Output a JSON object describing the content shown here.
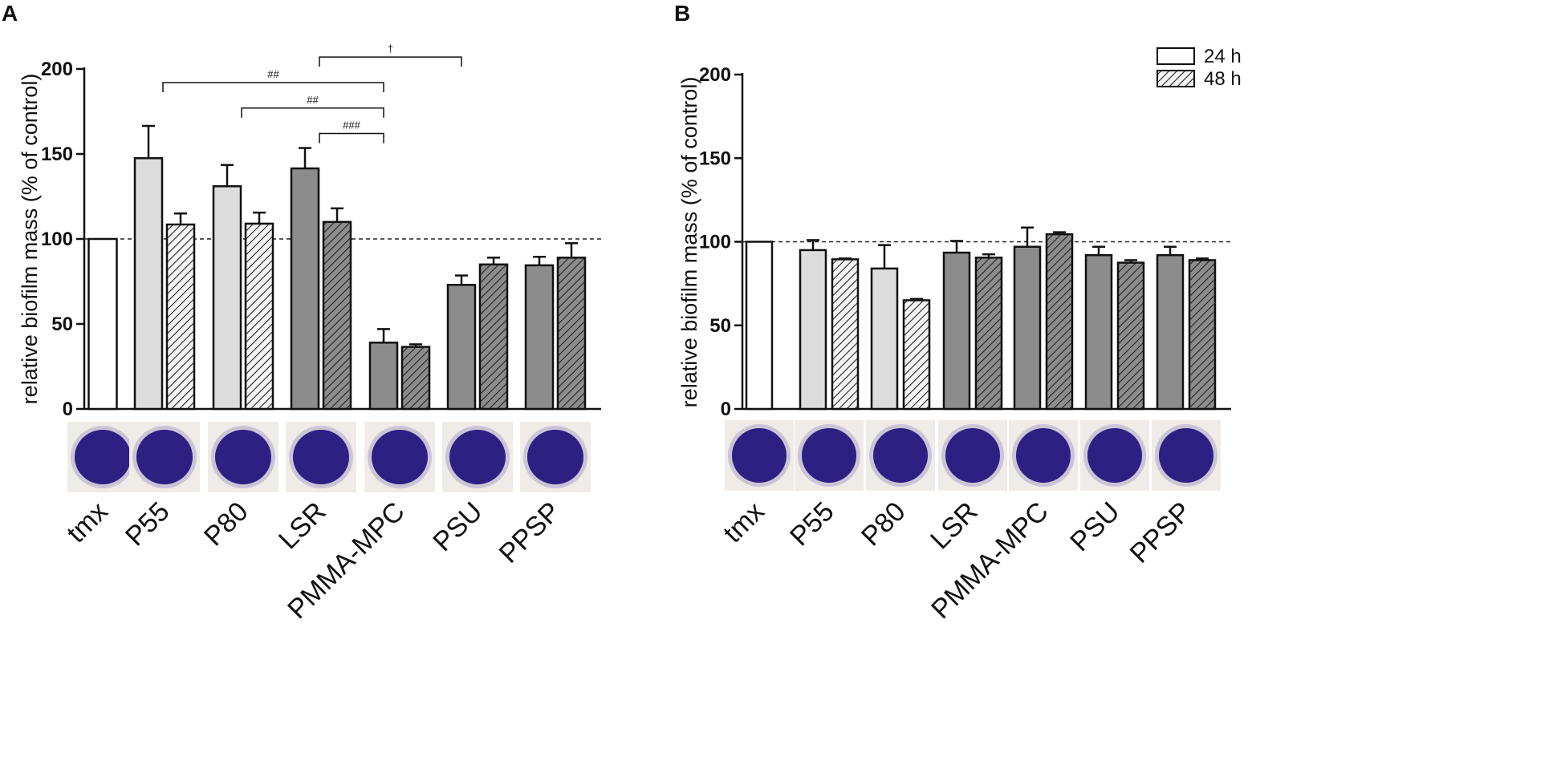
{
  "colors": {
    "white": "#ffffff",
    "light": "#dcdcdc",
    "dark": "#8c8c8c",
    "stroke": "#111111",
    "dish_bg": "#efece8",
    "dish": "#2e1f82"
  },
  "legend": {
    "items": [
      {
        "label": "24 h",
        "pattern": "open"
      },
      {
        "label": "48 h",
        "pattern": "hatched"
      }
    ]
  },
  "chart_data": [
    {
      "panel": "A",
      "type": "bar",
      "ylabel": "relative biofilm mass (% of control)",
      "ylim": [
        0,
        200
      ],
      "yticks": [
        0,
        50,
        100,
        150,
        200
      ],
      "reference_line": 100,
      "categories": [
        "tmx",
        "P55",
        "P80",
        "LSR",
        "PMMA-MPC",
        "PSU",
        "PPSP"
      ],
      "series": [
        {
          "name": "24 h",
          "values": [
            100,
            147.5,
            131,
            141.5,
            39,
            73,
            84.5
          ],
          "errors": [
            0,
            19,
            12.5,
            12,
            8,
            5.5,
            5
          ]
        },
        {
          "name": "48 h",
          "values": [
            null,
            108.5,
            109,
            110,
            36.5,
            85,
            89
          ],
          "errors": [
            0,
            6.5,
            6.5,
            8,
            1.5,
            4,
            8.5
          ]
        }
      ],
      "category_shade": [
        "white",
        "light",
        "light",
        "dark",
        "dark",
        "dark",
        "dark"
      ],
      "annotations": [
        {
          "label": "†",
          "from": "LSR",
          "to": "PSU",
          "y": 207
        },
        {
          "label": "##",
          "from": "P55",
          "to": "PMMA-MPC",
          "y": 192
        },
        {
          "label": "##",
          "from": "P80",
          "to": "PMMA-MPC",
          "y": 177
        },
        {
          "label": "###",
          "from": "LSR",
          "to": "PMMA-MPC",
          "y": 162
        }
      ]
    },
    {
      "panel": "B",
      "type": "bar",
      "ylabel": "relative biofilm mass (% of control)",
      "ylim": [
        0,
        200
      ],
      "yticks": [
        0,
        50,
        100,
        150,
        200
      ],
      "reference_line": 100,
      "categories": [
        "tmx",
        "P55",
        "P80",
        "LSR",
        "PMMA-MPC",
        "PSU",
        "PPSP"
      ],
      "series": [
        {
          "name": "24 h",
          "values": [
            100,
            95,
            84,
            93.5,
            97,
            92,
            92
          ],
          "errors": [
            0,
            6,
            14,
            7,
            11.5,
            5,
            5
          ]
        },
        {
          "name": "48 h",
          "values": [
            null,
            89.5,
            65,
            90.5,
            104.5,
            87.5,
            89
          ],
          "errors": [
            0,
            0.5,
            0.8,
            2,
            1.2,
            1.5,
            1
          ]
        }
      ],
      "category_shade": [
        "white",
        "light",
        "light",
        "dark",
        "dark",
        "dark",
        "dark"
      ],
      "annotations": []
    }
  ]
}
